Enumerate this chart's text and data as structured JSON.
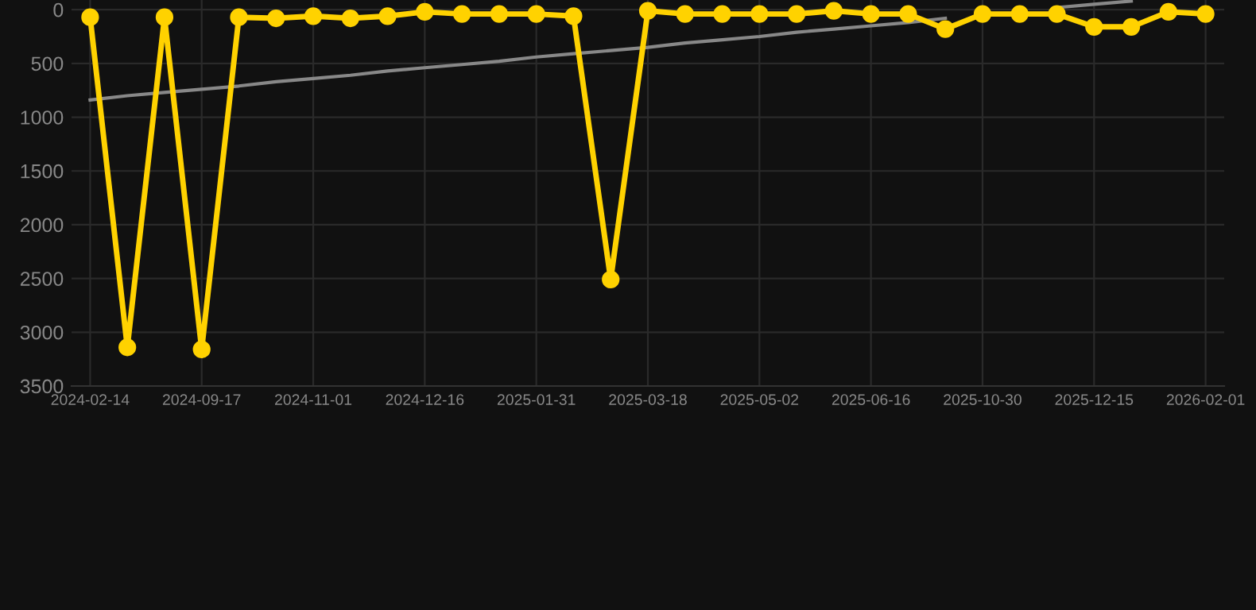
{
  "chart_data": {
    "type": "line",
    "categories": [
      "2024-02-14",
      null,
      null,
      "2024-09-17",
      null,
      null,
      "2024-11-01",
      null,
      null,
      "2024-12-16",
      null,
      null,
      "2025-01-31",
      null,
      null,
      "2025-03-18",
      null,
      null,
      "2025-05-02",
      null,
      null,
      "2025-06-16",
      null,
      null,
      "2025-10-30",
      null,
      null,
      "2025-12-15",
      null,
      null,
      "2026-02-01"
    ],
    "series": [
      {
        "color": "#888888",
        "marker": "none",
        "values": [
          840,
          800,
          770,
          740,
          710,
          670,
          640,
          610,
          570,
          540,
          510,
          480,
          440,
          410,
          380,
          350,
          310,
          280,
          250,
          210,
          180,
          150,
          120,
          80,
          null,
          null,
          -20,
          -50,
          -80,
          null,
          null
        ]
      },
      {
        "color": "#ffd200",
        "marker": "circle",
        "values": [
          70,
          3140,
          70,
          3160,
          70,
          80,
          60,
          80,
          60,
          20,
          40,
          40,
          40,
          60,
          2510,
          10,
          40,
          40,
          40,
          40,
          10,
          40,
          40,
          180,
          40,
          40,
          40,
          160,
          160,
          20,
          40
        ]
      }
    ],
    "ylim": [
      3500,
      -90
    ],
    "yticks": [
      0,
      500,
      1000,
      1500,
      2000,
      2500,
      3000,
      3500
    ],
    "grid": true,
    "line_style": "solid"
  }
}
